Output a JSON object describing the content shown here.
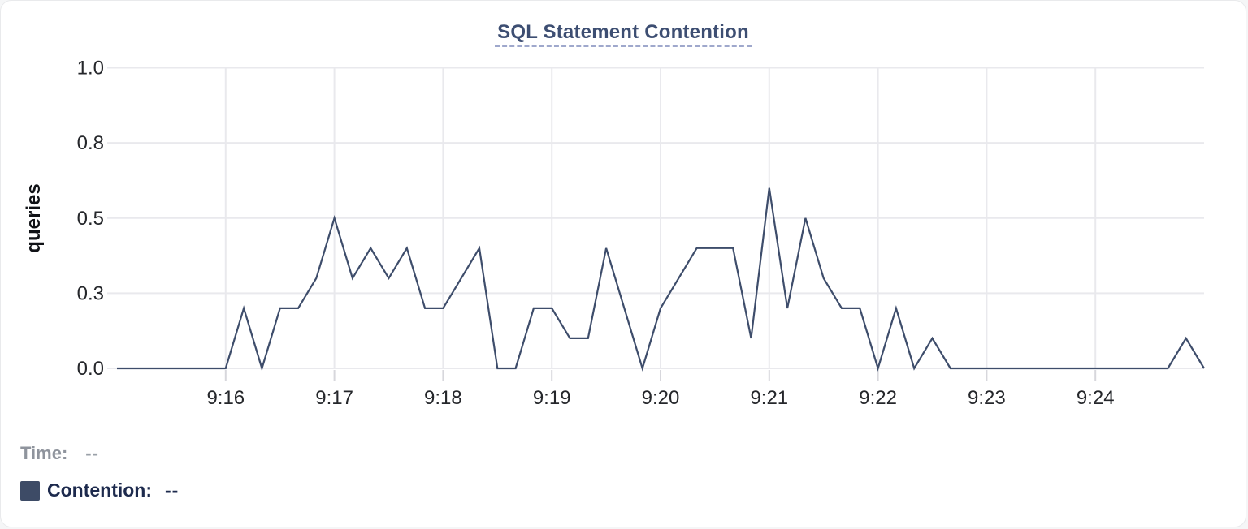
{
  "title": "SQL Statement Contention",
  "readout": {
    "time_label": "Time:",
    "time_value": "--",
    "contention_label": "Contention:",
    "contention_value": "--"
  },
  "colors": {
    "line": "#3e4d6b",
    "swatch": "#3d4b66",
    "grid": "#e9e9ed",
    "tick": "#d7d7dc",
    "axis_text": "#25272b",
    "axis_title_text": "#101216",
    "title_text": "#3d4e72",
    "title_underline": "#9fa8cc"
  },
  "chart_data": {
    "type": "line",
    "title": "SQL Statement Contention",
    "xlabel": "",
    "ylabel": "queries",
    "series_name": "Contention",
    "units": "queries",
    "ylim": [
      0,
      1.0
    ],
    "grid": true,
    "legend_position": "bottom-left",
    "x_range": [
      "9:15:00",
      "9:25:00"
    ],
    "sample_interval_seconds": 10,
    "x_tick_labels": [
      "9:16",
      "9:17",
      "9:18",
      "9:19",
      "9:20",
      "9:21",
      "9:22",
      "9:23",
      "9:24"
    ],
    "x_tick_seconds_from_start": [
      60,
      120,
      180,
      240,
      300,
      360,
      420,
      480,
      540
    ],
    "y_tick_labels": [
      "1.0",
      "0.8",
      "0.5",
      "0.3",
      "0.0"
    ],
    "y_tick_values": [
      1.0,
      0.75,
      0.5,
      0.25,
      0.0
    ],
    "x": [
      "9:15:00",
      "9:15:10",
      "9:15:20",
      "9:15:30",
      "9:15:40",
      "9:15:50",
      "9:16:00",
      "9:16:10",
      "9:16:20",
      "9:16:30",
      "9:16:40",
      "9:16:50",
      "9:17:00",
      "9:17:10",
      "9:17:20",
      "9:17:30",
      "9:17:40",
      "9:17:50",
      "9:18:00",
      "9:18:10",
      "9:18:20",
      "9:18:30",
      "9:18:40",
      "9:18:50",
      "9:19:00",
      "9:19:10",
      "9:19:20",
      "9:19:30",
      "9:19:40",
      "9:19:50",
      "9:20:00",
      "9:20:10",
      "9:20:20",
      "9:20:30",
      "9:20:40",
      "9:20:50",
      "9:21:00",
      "9:21:10",
      "9:21:20",
      "9:21:30",
      "9:21:40",
      "9:21:50",
      "9:22:00",
      "9:22:10",
      "9:22:20",
      "9:22:30",
      "9:22:40",
      "9:22:50",
      "9:23:00",
      "9:23:10",
      "9:23:20",
      "9:23:30",
      "9:23:40",
      "9:23:50",
      "9:24:00",
      "9:24:10",
      "9:24:20",
      "9:24:30",
      "9:24:40",
      "9:24:50",
      "9:25:00"
    ],
    "values": [
      0,
      0,
      0,
      0,
      0,
      0,
      0,
      0.2,
      0,
      0.2,
      0.2,
      0.3,
      0.5,
      0.3,
      0.4,
      0.3,
      0.4,
      0.2,
      0.2,
      0.3,
      0.4,
      0,
      0,
      0.2,
      0.2,
      0.1,
      0.1,
      0.4,
      0.2,
      0,
      0.2,
      0.3,
      0.4,
      0.4,
      0.4,
      0.1,
      0.6,
      0.2,
      0.5,
      0.3,
      0.2,
      0.2,
      0,
      0.2,
      0,
      0.1,
      0,
      0,
      0,
      0,
      0,
      0,
      0,
      0,
      0,
      0,
      0,
      0,
      0,
      0.1,
      0
    ]
  }
}
